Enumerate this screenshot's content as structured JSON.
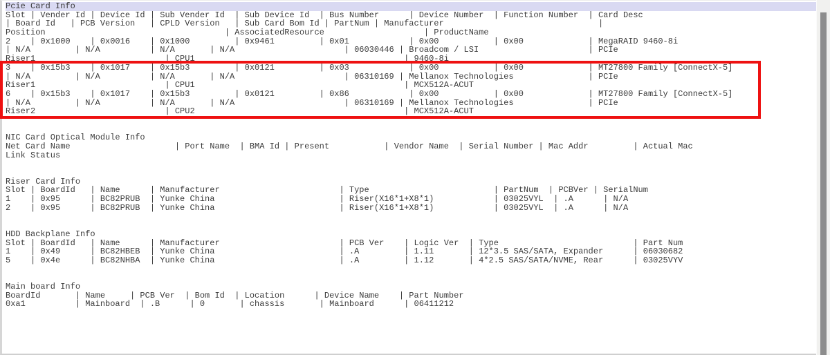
{
  "colors": {
    "selection_highlight": "#d9d9f2",
    "annotation_red": "#ee1111",
    "text": "#3b3b3b",
    "scrollbar_thumb": "#8d8d8d",
    "scrollbar_track": "#f1f1ef"
  },
  "annotations": {
    "highlight_box": {
      "color": "#ee1111",
      "encloses": "PCIe slots 3 and 6 (MT27800 ConnectX-5 rows)"
    }
  },
  "sections": [
    {
      "title": "Pcie Card Info",
      "title_highlighted": true,
      "columns": [
        "Slot",
        "Vender Id",
        "Device Id",
        "Sub Vender Id",
        "Sub Device Id",
        "Bus Number",
        "Device Number",
        "Function Number",
        "Card Desc",
        "Board Id",
        "PCB Version",
        "CPLD Version",
        "Sub Card Bom Id",
        "PartNum",
        "Manufacturer",
        "Position",
        "AssociatedResource",
        "ProductName"
      ],
      "rows": [
        [
          "2",
          "0x1000",
          "0x0016",
          "0x1000",
          "0x9461",
          "0x01",
          "0x00",
          "0x00",
          "MegaRAID 9460-8i",
          "N/A",
          "N/A",
          "N/A",
          "N/A",
          "06030446",
          "Broadcom / LSI",
          "Riser1",
          "CPU1",
          "9460-8i"
        ],
        [
          "3",
          "0x15b3",
          "0x1017",
          "0x15b3",
          "0x0121",
          "0x03",
          "0x00",
          "0x00",
          "MT27800 Family [ConnectX-5]",
          "N/A",
          "N/A",
          "N/A",
          "N/A",
          "06310169",
          "Mellanox Technologies",
          "Riser1",
          "CPU1",
          "MCX512A-ACUT"
        ],
        [
          "6",
          "0x15b3",
          "0x1017",
          "0x15b3",
          "0x0121",
          "0x86",
          "0x00",
          "0x00",
          "MT27800 Family [ConnectX-5]",
          "N/A",
          "N/A",
          "N/A",
          "N/A",
          "06310169",
          "Mellanox Technologies",
          "Riser2",
          "CPU2",
          "MCX512A-ACUT"
        ]
      ],
      "lines": [
        "Slot | Vender Id | Device Id | Sub Vender Id  | Sub Device Id  | Bus Number      | Device Number  | Function Number  | Card Desc",
        "| Board Id   | PCB Version   | CPLD Version   | Sub Card Bom Id | PartNum | Manufacturer                               |",
        "Position                                    | AssociatedResource                    | ProductName",
        "2    | 0x1000    | 0x0016    | 0x1000         | 0x9461         | 0x01            | 0x00           | 0x00             | MegaRAID 9460-8i",
        "| N/A         | N/A          | N/A       | N/A                      | 06030446 | Broadcom / LSI                      | PCIe",
        "Riser1                          | CPU1                                          | 9460-8i",
        "3    | 0x15b3    | 0x1017    | 0x15b3         | 0x0121         | 0x03            | 0x00           | 0x00             | MT27800 Family [ConnectX-5]",
        "| N/A         | N/A          | N/A       | N/A                      | 06310169 | Mellanox Technologies               | PCIe",
        "Riser1                          | CPU1                                          | MCX512A-ACUT",
        "6    | 0x15b3    | 0x1017    | 0x15b3         | 0x0121         | 0x86            | 0x00           | 0x00             | MT27800 Family [ConnectX-5]",
        "| N/A         | N/A          | N/A       | N/A                      | 06310169 | Mellanox Technologies               | PCIe",
        "Riser2                          | CPU2                                          | MCX512A-ACUT"
      ]
    },
    {
      "title": "NIC Card Optical Module Info",
      "title_highlighted": false,
      "columns": [
        "Net Card Name",
        "Port Name",
        "BMA Id",
        "Present",
        "Vendor Name",
        "Serial Number",
        "Mac Addr",
        "Actual Mac",
        "Link Status"
      ],
      "rows": [],
      "lines": [
        "Net Card Name                     | Port Name  | BMA Id | Present           | Vendor Name  | Serial Number | Mac Addr         | Actual Mac                         |",
        "Link Status"
      ]
    },
    {
      "title": "Riser Card Info",
      "title_highlighted": false,
      "columns": [
        "Slot",
        "BoardId",
        "Name",
        "Manufacturer",
        "Type",
        "PartNum",
        "PCBVer",
        "SerialNum"
      ],
      "rows": [
        [
          "1",
          "0x95",
          "BC82PRUB",
          "Yunke China",
          "Riser(X16*1+X8*1)",
          "03025VYL",
          ".A",
          "N/A"
        ],
        [
          "2",
          "0x95",
          "BC82PRUB",
          "Yunke China",
          "Riser(X16*1+X8*1)",
          "03025VYL",
          ".A",
          "N/A"
        ]
      ],
      "lines": [
        "Slot | BoardId   | Name      | Manufacturer                        | Type                         | PartNum  | PCBVer | SerialNum",
        "1    | 0x95      | BC82PRUB  | Yunke China                         | Riser(X16*1+X8*1)            | 03025VYL  | .A      | N/A",
        "2    | 0x95      | BC82PRUB  | Yunke China                         | Riser(X16*1+X8*1)            | 03025VYL  | .A      | N/A"
      ]
    },
    {
      "title": "HDD Backplane Info",
      "title_highlighted": false,
      "columns": [
        "Slot",
        "BoardId",
        "Name",
        "Manufacturer",
        "PCB Ver",
        "Logic Ver",
        "Type",
        "Part Num"
      ],
      "rows": [
        [
          "1",
          "0x49",
          "BC82HBEB",
          "Yunke China",
          ".A",
          "1.11",
          "12*3.5 SAS/SATA, Expander",
          "06030682"
        ],
        [
          "5",
          "0x4e",
          "BC82NHBA",
          "Yunke China",
          ".A",
          "1.12",
          "4*2.5 SAS/SATA/NVME, Rear",
          "03025VYV"
        ]
      ],
      "lines": [
        "Slot | BoardId   | Name      | Manufacturer                        | PCB Ver    | Logic Ver  | Type                           | Part Num",
        "1    | 0x49      | BC82HBEB  | Yunke China                         | .A         | 1.11       | 12*3.5 SAS/SATA, Expander      | 06030682",
        "5    | 0x4e      | BC82NHBA  | Yunke China                         | .A         | 1.12       | 4*2.5 SAS/SATA/NVME, Rear      | 03025VYV"
      ]
    },
    {
      "title": "Main board Info",
      "title_highlighted": false,
      "columns": [
        "BoardId",
        "Name",
        "PCB Ver",
        "Bom Id",
        "Location",
        "Device Name",
        "Part Number"
      ],
      "rows": [
        [
          "0xa1",
          "Mainboard",
          ".B",
          "0",
          "chassis",
          "Mainboard",
          "06411212"
        ]
      ],
      "lines": [
        "BoardId       | Name     | PCB Ver  | Bom Id  | Location      | Device Name    | Part Number",
        "0xa1          | Mainboard  | .B      | 0       | chassis       | Mainboard      | 06411212"
      ]
    }
  ]
}
